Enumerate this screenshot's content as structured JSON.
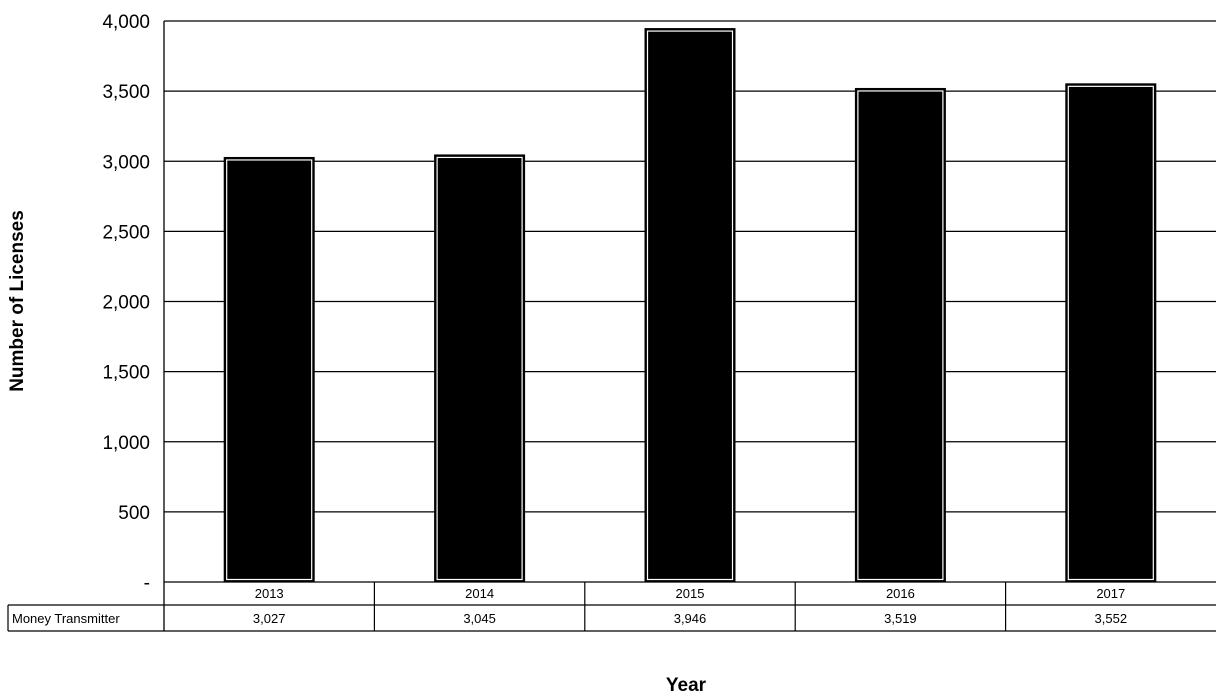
{
  "chart_data": {
    "type": "bar",
    "categories": [
      "2013",
      "2014",
      "2015",
      "2016",
      "2017"
    ],
    "series": [
      {
        "name": "Money Transmitter",
        "values": [
          3027,
          3045,
          3946,
          3519,
          3552
        ],
        "value_labels": [
          "3,027",
          "3,045",
          "3,946",
          "3,519",
          "3,552"
        ]
      }
    ],
    "ylabel": "Number of Licenses",
    "xlabel": "Year",
    "ylim": [
      0,
      4000
    ],
    "yticks": [
      0,
      500,
      1000,
      1500,
      2000,
      2500,
      3000,
      3500,
      4000
    ],
    "ytick_labels": [
      "-",
      "500",
      "1,000",
      "1,500",
      "2,000",
      "2,500",
      "3,000",
      "3,500",
      "4,000"
    ],
    "grid": true,
    "legend": "data-table-below",
    "bar_color": "#000000"
  }
}
